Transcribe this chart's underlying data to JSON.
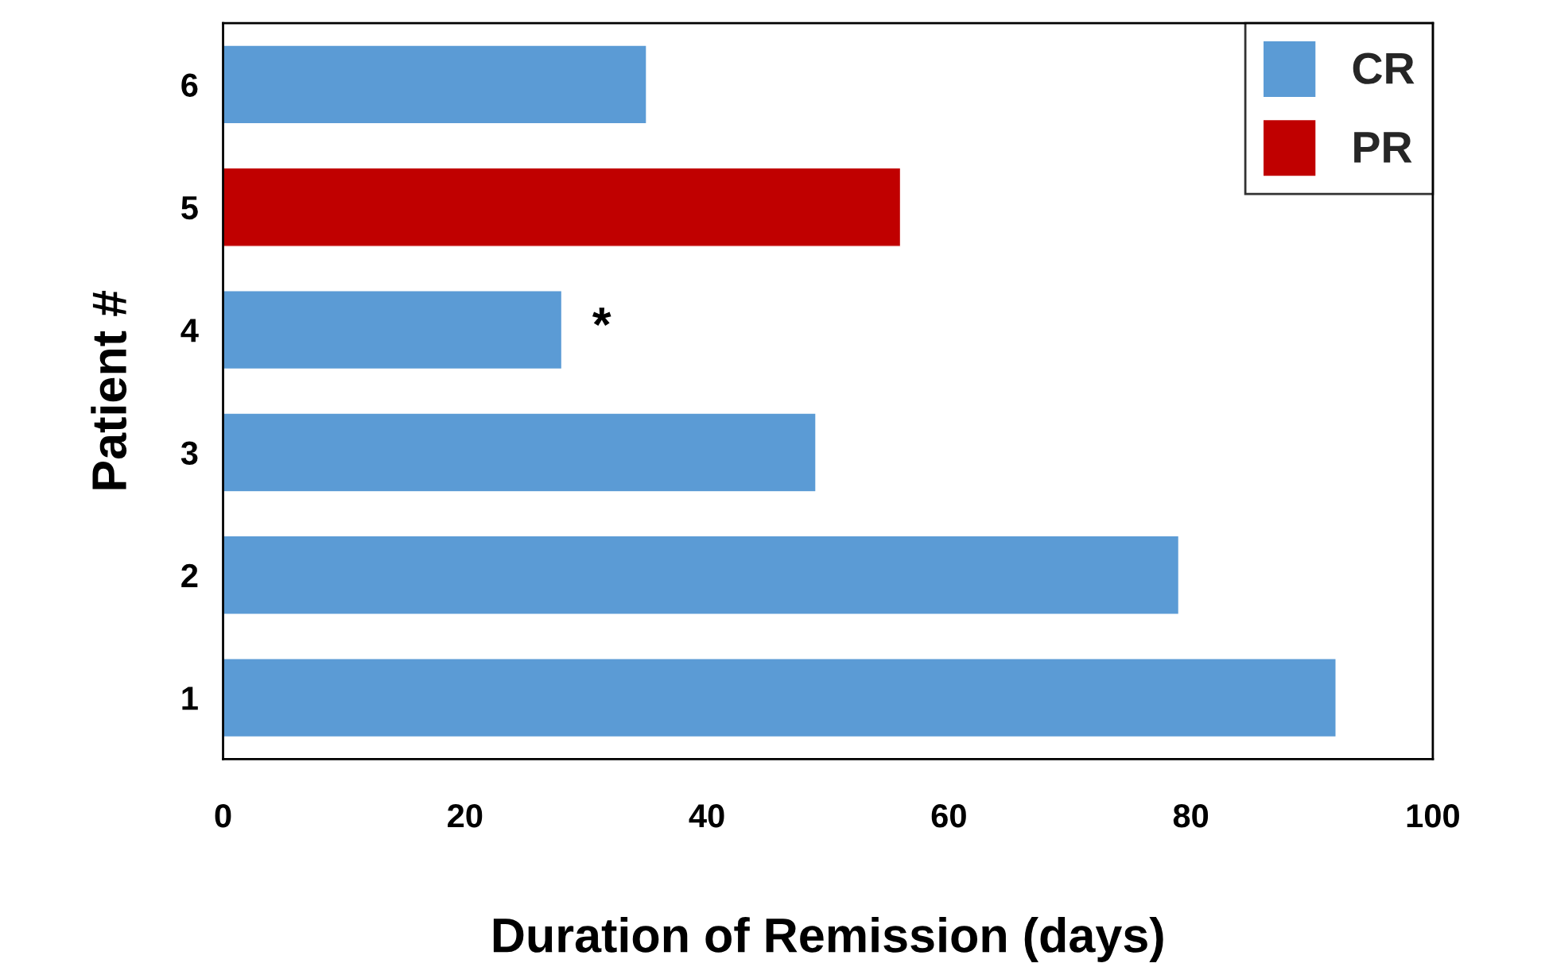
{
  "chart_data": {
    "type": "bar",
    "orientation": "horizontal",
    "xlabel": "Duration of Remission (days)",
    "ylabel": "Patient #",
    "categories": [
      "6",
      "5",
      "4",
      "3",
      "2",
      "1"
    ],
    "series": [
      {
        "name": "CR",
        "color": "#5b9bd5",
        "values": [
          35,
          null,
          28,
          49,
          79,
          92
        ]
      },
      {
        "name": "PR",
        "color": "#c00000",
        "values": [
          null,
          56,
          null,
          null,
          null,
          null
        ]
      }
    ],
    "xlim": [
      0,
      100
    ],
    "xticks": [
      0,
      20,
      40,
      60,
      80,
      100
    ],
    "grid": false,
    "legend": "top right",
    "annotations": [
      "*"
    ]
  }
}
